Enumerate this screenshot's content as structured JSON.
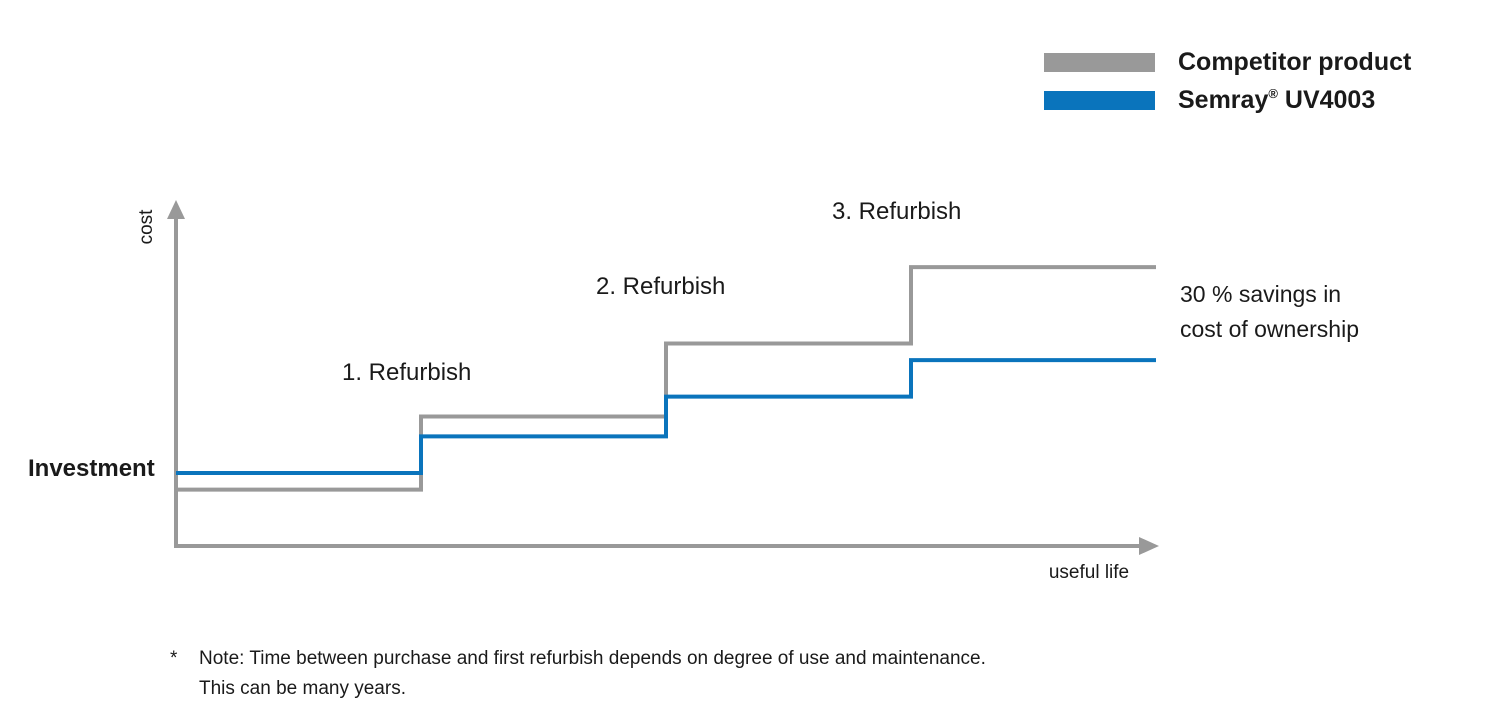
{
  "chart_data": {
    "type": "line",
    "step": true,
    "xlabel": "useful life",
    "ylabel": "cost",
    "y_reference_label": "Investment",
    "phases": [
      "",
      "1. Refurbish",
      "2. Refurbish",
      "3. Refurbish"
    ],
    "x": [
      0,
      1,
      2,
      3,
      4
    ],
    "xlim": [
      0,
      4
    ],
    "ylim": [
      0,
      10
    ],
    "series": [
      {
        "name": "Competitor product",
        "color": "#999999",
        "values": [
          1.7,
          3.9,
          6.1,
          8.4,
          8.4
        ]
      },
      {
        "name": "Semray® UV4003",
        "color": "#0a74bc",
        "values": [
          2.2,
          3.3,
          4.5,
          5.6,
          5.6
        ]
      }
    ],
    "annotation_lines": [
      "30 % savings in",
      "cost of ownership"
    ],
    "grid": false,
    "legend_position": "top-right"
  },
  "legend": {
    "competitor": {
      "label": "Competitor product",
      "color": "#999999"
    },
    "semray": {
      "label_main": "Semray",
      "label_reg": "®",
      "label_model": " UV4003",
      "color": "#0a74bc"
    }
  },
  "note": {
    "marker": "*",
    "line1": "Note: Time between purchase and first refurbish depends on degree of use and maintenance.",
    "line2": "This can be many years."
  }
}
